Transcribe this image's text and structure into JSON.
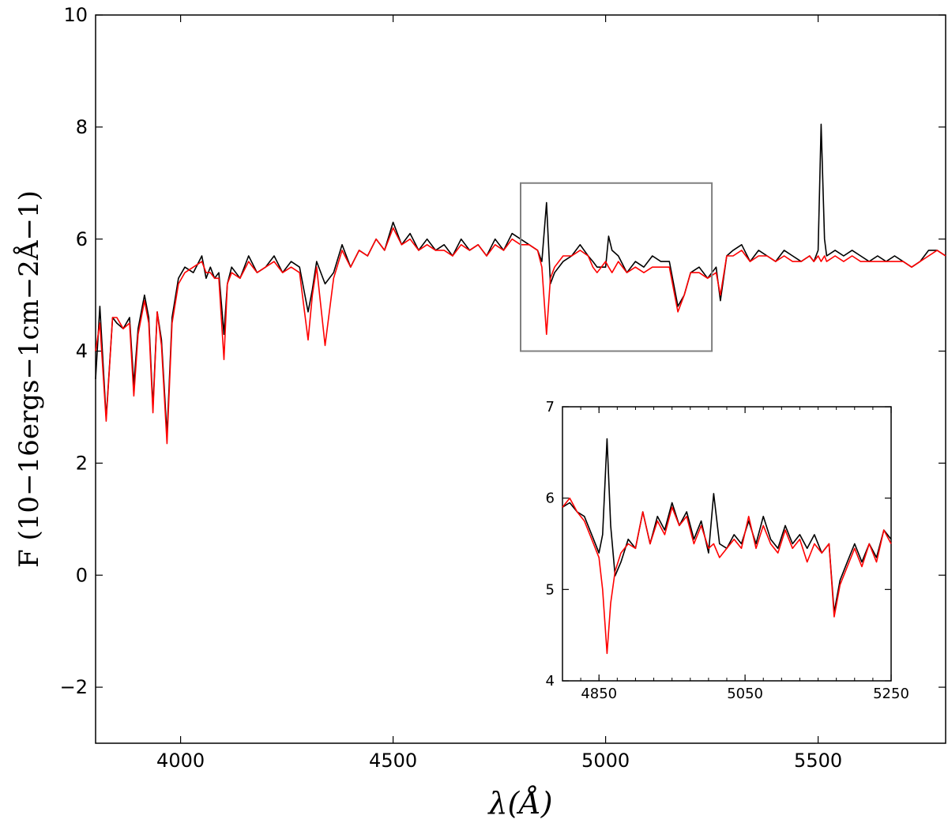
{
  "chart_data": [
    {
      "type": "line",
      "xlabel": "λ(Å)",
      "ylabel": "F (10−16ergs−1cm−2Å−1)",
      "xlim": [
        3800,
        5800
      ],
      "ylim": [
        -3,
        10
      ],
      "xticks": [
        4000,
        4500,
        5000,
        5500
      ],
      "yticks": [
        -2,
        0,
        2,
        4,
        6,
        8,
        10
      ],
      "xtick_labels": [
        "4000",
        "4500",
        "5000",
        "5500"
      ],
      "ytick_labels": [
        "−2",
        "0",
        "2",
        "4",
        "6",
        "8",
        "10"
      ],
      "grid": false,
      "legend": "none",
      "highlight_box": {
        "x": [
          4800,
          5250
        ],
        "y": [
          4,
          7
        ],
        "color": "#808080"
      },
      "series": [
        {
          "color": "#000000",
          "x": [
            3800,
            3810,
            3825,
            3840,
            3850,
            3865,
            3880,
            3890,
            3900,
            3915,
            3925,
            3935,
            3945,
            3955,
            3968,
            3980,
            3995,
            4010,
            4030,
            4050,
            4060,
            4070,
            4080,
            4090,
            4102,
            4110,
            4120,
            4140,
            4160,
            4180,
            4200,
            4220,
            4240,
            4260,
            4280,
            4300,
            4310,
            4320,
            4340,
            4360,
            4380,
            4400,
            4420,
            4440,
            4460,
            4480,
            4500,
            4520,
            4540,
            4560,
            4580,
            4600,
            4620,
            4640,
            4660,
            4680,
            4700,
            4720,
            4740,
            4760,
            4780,
            4800,
            4820,
            4840,
            4850,
            4861,
            4870,
            4880,
            4900,
            4920,
            4940,
            4959,
            4970,
            4980,
            5000,
            5007,
            5015,
            5030,
            5050,
            5070,
            5090,
            5110,
            5130,
            5150,
            5170,
            5185,
            5200,
            5220,
            5240,
            5260,
            5270,
            5285,
            5300,
            5320,
            5340,
            5360,
            5380,
            5400,
            5420,
            5440,
            5460,
            5480,
            5490,
            5500,
            5507,
            5515,
            5520,
            5540,
            5560,
            5580,
            5600,
            5620,
            5640,
            5660,
            5680,
            5700,
            5720,
            5740,
            5760,
            5780,
            5800
          ],
          "y": [
            3.5,
            4.8,
            2.8,
            4.6,
            4.5,
            4.4,
            4.6,
            3.4,
            4.4,
            5.0,
            4.6,
            3.0,
            4.7,
            4.2,
            2.5,
            4.6,
            5.3,
            5.5,
            5.4,
            5.7,
            5.3,
            5.5,
            5.3,
            5.4,
            4.3,
            5.2,
            5.5,
            5.3,
            5.7,
            5.4,
            5.5,
            5.7,
            5.4,
            5.6,
            5.5,
            4.7,
            5.1,
            5.6,
            5.2,
            5.4,
            5.9,
            5.5,
            5.8,
            5.7,
            6.0,
            5.8,
            6.3,
            5.9,
            6.1,
            5.8,
            6.0,
            5.8,
            5.9,
            5.7,
            6.0,
            5.8,
            5.9,
            5.7,
            6.0,
            5.8,
            6.1,
            6.0,
            5.9,
            5.8,
            5.6,
            6.65,
            5.2,
            5.4,
            5.6,
            5.7,
            5.9,
            5.7,
            5.6,
            5.5,
            5.5,
            6.05,
            5.8,
            5.7,
            5.4,
            5.6,
            5.5,
            5.7,
            5.6,
            5.6,
            4.8,
            5.0,
            5.4,
            5.5,
            5.3,
            5.5,
            4.9,
            5.7,
            5.8,
            5.9,
            5.6,
            5.8,
            5.7,
            5.6,
            5.8,
            5.7,
            5.6,
            5.7,
            5.6,
            5.8,
            8.05,
            6.0,
            5.7,
            5.8,
            5.7,
            5.8,
            5.7,
            5.6,
            5.7,
            5.6,
            5.7,
            5.6,
            5.5,
            5.6,
            5.8,
            5.8,
            5.7
          ]
        },
        {
          "color": "#ff0000",
          "x": [
            3800,
            3810,
            3825,
            3840,
            3850,
            3865,
            3880,
            3890,
            3900,
            3915,
            3925,
            3935,
            3945,
            3955,
            3968,
            3980,
            3995,
            4010,
            4030,
            4050,
            4060,
            4070,
            4080,
            4090,
            4102,
            4110,
            4120,
            4140,
            4160,
            4180,
            4200,
            4220,
            4240,
            4260,
            4280,
            4300,
            4310,
            4320,
            4340,
            4360,
            4380,
            4400,
            4420,
            4440,
            4460,
            4480,
            4500,
            4520,
            4540,
            4560,
            4580,
            4600,
            4620,
            4640,
            4660,
            4680,
            4700,
            4720,
            4740,
            4760,
            4780,
            4800,
            4820,
            4840,
            4850,
            4861,
            4870,
            4880,
            4900,
            4920,
            4940,
            4959,
            4970,
            4980,
            5000,
            5007,
            5015,
            5030,
            5050,
            5070,
            5090,
            5110,
            5130,
            5150,
            5170,
            5185,
            5200,
            5220,
            5240,
            5260,
            5270,
            5285,
            5300,
            5320,
            5340,
            5360,
            5380,
            5400,
            5420,
            5440,
            5460,
            5480,
            5490,
            5500,
            5507,
            5515,
            5520,
            5540,
            5560,
            5580,
            5600,
            5620,
            5640,
            5660,
            5680,
            5700,
            5720,
            5740,
            5760,
            5780,
            5800
          ],
          "y": [
            4.0,
            4.5,
            2.75,
            4.6,
            4.6,
            4.4,
            4.5,
            3.2,
            4.3,
            4.9,
            4.5,
            2.9,
            4.7,
            4.1,
            2.35,
            4.5,
            5.2,
            5.4,
            5.5,
            5.6,
            5.4,
            5.4,
            5.3,
            5.3,
            3.85,
            5.2,
            5.4,
            5.3,
            5.6,
            5.4,
            5.5,
            5.6,
            5.4,
            5.5,
            5.4,
            4.2,
            5.0,
            5.5,
            4.1,
            5.3,
            5.8,
            5.5,
            5.8,
            5.7,
            6.0,
            5.8,
            6.2,
            5.9,
            6.0,
            5.8,
            5.9,
            5.8,
            5.8,
            5.7,
            5.9,
            5.8,
            5.9,
            5.7,
            5.9,
            5.8,
            6.0,
            5.9,
            5.9,
            5.8,
            5.5,
            4.3,
            5.3,
            5.5,
            5.7,
            5.7,
            5.8,
            5.7,
            5.5,
            5.4,
            5.6,
            5.5,
            5.4,
            5.6,
            5.4,
            5.5,
            5.4,
            5.5,
            5.5,
            5.5,
            4.7,
            5.0,
            5.4,
            5.4,
            5.3,
            5.4,
            5.0,
            5.7,
            5.7,
            5.8,
            5.6,
            5.7,
            5.7,
            5.6,
            5.7,
            5.6,
            5.6,
            5.7,
            5.6,
            5.7,
            5.6,
            5.7,
            5.6,
            5.7,
            5.6,
            5.7,
            5.6,
            5.6,
            5.6,
            5.6,
            5.6,
            5.6,
            5.5,
            5.6,
            5.7,
            5.8,
            5.7
          ]
        }
      ]
    },
    {
      "type": "line",
      "inset": true,
      "xlim": [
        4800,
        5250
      ],
      "ylim": [
        4,
        7
      ],
      "xticks": [
        4850,
        5050,
        5250
      ],
      "yticks": [
        4,
        5,
        6,
        7
      ],
      "xtick_labels": [
        "4850",
        "5050",
        "5250"
      ],
      "ytick_labels": [
        "4",
        "5",
        "6",
        "7"
      ],
      "minor_xticks": [
        4800,
        4825,
        4850,
        4875,
        4900,
        4925,
        4950,
        4975,
        5000,
        5025,
        5050,
        5075,
        5100,
        5125,
        5150,
        5175,
        5200,
        5225,
        5250
      ],
      "grid": false,
      "legend": "none",
      "series": [
        {
          "color": "#000000",
          "x": [
            4800,
            4810,
            4820,
            4830,
            4840,
            4850,
            4855,
            4861,
            4866,
            4872,
            4880,
            4890,
            4900,
            4910,
            4920,
            4930,
            4940,
            4950,
            4960,
            4970,
            4980,
            4990,
            5000,
            5007,
            5015,
            5025,
            5035,
            5045,
            5055,
            5065,
            5075,
            5085,
            5095,
            5105,
            5115,
            5125,
            5135,
            5145,
            5155,
            5165,
            5172,
            5180,
            5190,
            5200,
            5210,
            5220,
            5230,
            5240,
            5250
          ],
          "y": [
            5.9,
            5.95,
            5.85,
            5.8,
            5.6,
            5.4,
            5.6,
            6.65,
            5.7,
            5.15,
            5.3,
            5.55,
            5.45,
            5.85,
            5.5,
            5.8,
            5.65,
            5.95,
            5.7,
            5.85,
            5.55,
            5.75,
            5.4,
            6.05,
            5.5,
            5.45,
            5.6,
            5.5,
            5.75,
            5.5,
            5.8,
            5.55,
            5.45,
            5.7,
            5.5,
            5.6,
            5.45,
            5.6,
            5.4,
            5.5,
            4.75,
            5.1,
            5.3,
            5.5,
            5.3,
            5.5,
            5.35,
            5.65,
            5.55
          ]
        },
        {
          "color": "#ff0000",
          "x": [
            4800,
            4810,
            4820,
            4830,
            4840,
            4850,
            4855,
            4861,
            4866,
            4872,
            4880,
            4890,
            4900,
            4910,
            4920,
            4930,
            4940,
            4950,
            4960,
            4970,
            4980,
            4990,
            5000,
            5007,
            5015,
            5025,
            5035,
            5045,
            5055,
            5065,
            5075,
            5085,
            5095,
            5105,
            5115,
            5125,
            5135,
            5145,
            5155,
            5165,
            5172,
            5180,
            5190,
            5200,
            5210,
            5220,
            5230,
            5240,
            5250
          ],
          "y": [
            5.9,
            6.0,
            5.85,
            5.75,
            5.55,
            5.35,
            5.0,
            4.3,
            4.85,
            5.2,
            5.4,
            5.5,
            5.45,
            5.85,
            5.5,
            5.75,
            5.6,
            5.9,
            5.7,
            5.8,
            5.5,
            5.7,
            5.45,
            5.5,
            5.35,
            5.45,
            5.55,
            5.45,
            5.8,
            5.45,
            5.7,
            5.5,
            5.4,
            5.65,
            5.45,
            5.55,
            5.3,
            5.5,
            5.4,
            5.5,
            4.7,
            5.05,
            5.25,
            5.45,
            5.25,
            5.5,
            5.3,
            5.65,
            5.5
          ]
        }
      ]
    }
  ]
}
